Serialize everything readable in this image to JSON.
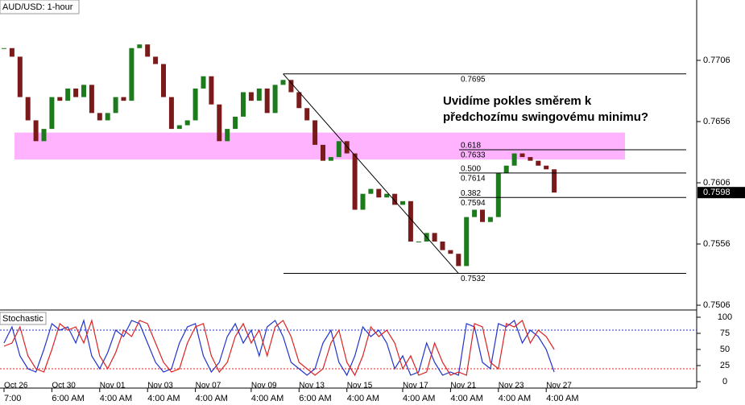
{
  "chart_data": [
    {
      "type": "candlestick",
      "title": "AUD/USD: 1-hour",
      "values": [
        0.7716,
        0.7709,
        0.7676,
        0.7657,
        0.764,
        0.765,
        0.7676,
        0.7673,
        0.7683,
        0.7676,
        0.7686,
        0.7663,
        0.7657,
        0.7663,
        0.7676,
        0.7673,
        0.7716,
        0.7719,
        0.7709,
        0.7703,
        0.7676,
        0.765,
        0.7653,
        0.7657,
        0.7683,
        0.7693,
        0.767,
        0.764,
        0.765,
        0.766,
        0.768,
        0.7673,
        0.7683,
        0.7663,
        0.7686,
        0.769,
        0.768,
        0.7667,
        0.7657,
        0.7637,
        0.7624,
        0.7627,
        0.764,
        0.763,
        0.7584,
        0.7597,
        0.7601,
        0.7594,
        0.7597,
        0.7588,
        0.7591,
        0.7558,
        0.7558,
        0.7565,
        0.7558,
        0.7551,
        0.7548,
        0.7538,
        0.7578,
        0.7584,
        0.7574,
        0.7578,
        0.7614,
        0.762,
        0.763,
        0.7627,
        0.7624,
        0.762,
        0.7617,
        0.7598
      ],
      "up_color": "#1d7a1d",
      "down_color": "#7a1a1a",
      "ylim": [
        0.75021,
        0.77553
      ],
      "yticks": [
        0.7506,
        0.7556,
        0.7606,
        0.7656,
        0.7706
      ],
      "last_price": 0.7598,
      "zone": {
        "ylim": [
          0.7625,
          0.7647
        ],
        "color": "#ff99ff"
      },
      "trendline": [
        {
          "index": 35,
          "value": 0.7695
        },
        {
          "index": 57,
          "value": 0.7532
        }
      ],
      "fib_levels": [
        {
          "value": 0.7695
        },
        {
          "ratio": "0.618",
          "value": 0.7633
        },
        {
          "ratio": "0.500",
          "value": 0.7614
        },
        {
          "ratio": "0.382",
          "value": 0.7594
        },
        {
          "value": 0.7532
        }
      ],
      "annotation": [
        "Uvidíme pokles směrem k",
        "předchozímu swingovému minimu?"
      ],
      "xticks": [
        {
          "value": 0,
          "label": "Oct 26",
          "time": "7:00"
        },
        {
          "value": 6,
          "label": "Oct 30",
          "time": "6:00 AM"
        },
        {
          "value": 12,
          "label": "Nov 01",
          "time": "4:00 AM"
        },
        {
          "value": 18,
          "label": "Nov 03",
          "time": "4:00 AM"
        },
        {
          "value": 24,
          "label": "Nov 07",
          "time": "4:00 AM"
        },
        {
          "value": 31,
          "label": "Nov 09",
          "time": "4:00 AM"
        },
        {
          "value": 37,
          "label": "Nov 13",
          "time": "6:00 AM"
        },
        {
          "value": 43,
          "label": "Nov 15",
          "time": "4:00 AM"
        },
        {
          "value": 50,
          "label": "Nov 17",
          "time": "4:00 AM"
        },
        {
          "value": 56,
          "label": "Nov 21",
          "time": "4:00 AM"
        },
        {
          "value": 62,
          "label": "Nov 23",
          "time": "4:00 AM"
        },
        {
          "value": 68,
          "label": "Nov 27",
          "time": "4:00 AM"
        }
      ]
    },
    {
      "type": "line",
      "title": "Stochastic",
      "series": [
        {
          "color": "#2233cc",
          "values": [
            60,
            85,
            40,
            20,
            15,
            50,
            90,
            80,
            85,
            60,
            95,
            40,
            20,
            45,
            80,
            70,
            95,
            90,
            60,
            30,
            15,
            20,
            60,
            85,
            90,
            40,
            15,
            30,
            70,
            90,
            60,
            80,
            40,
            85,
            95,
            70,
            30,
            20,
            10,
            20,
            60,
            80,
            30,
            10,
            40,
            85,
            70,
            80,
            60,
            20,
            40,
            10,
            15,
            60,
            30,
            10,
            15,
            10,
            90,
            85,
            30,
            20,
            90,
            85,
            95,
            60,
            80,
            70,
            50,
            15
          ]
        },
        {
          "color": "#dd2222",
          "values": [
            55,
            60,
            85,
            40,
            20,
            15,
            50,
            90,
            80,
            85,
            60,
            95,
            40,
            20,
            45,
            80,
            70,
            95,
            90,
            60,
            30,
            15,
            20,
            60,
            85,
            90,
            40,
            15,
            30,
            70,
            90,
            60,
            80,
            40,
            85,
            95,
            70,
            30,
            20,
            10,
            20,
            60,
            80,
            30,
            10,
            40,
            85,
            70,
            80,
            60,
            20,
            40,
            10,
            15,
            60,
            30,
            10,
            15,
            10,
            90,
            85,
            30,
            20,
            90,
            85,
            95,
            60,
            80,
            70,
            50
          ]
        }
      ],
      "ylim": [
        -10,
        107.5
      ],
      "yticks": [
        0,
        25,
        50,
        75,
        100
      ],
      "levels": [
        {
          "value": 80,
          "color": "#2233cc"
        },
        {
          "value": 20,
          "color": "#dd2222"
        }
      ]
    }
  ]
}
